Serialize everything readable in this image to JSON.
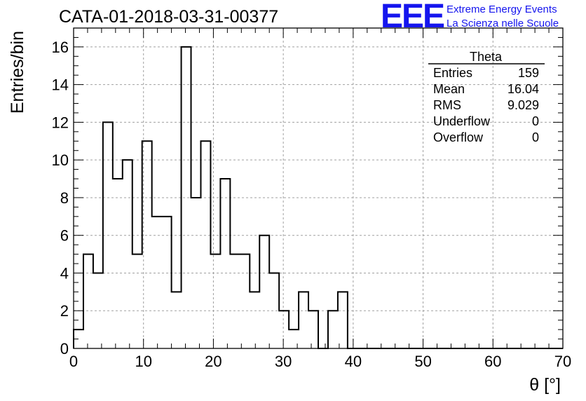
{
  "header": {
    "title": "CATA-01-2018-03-31-00377",
    "logo_mark": "EEE",
    "logo_line1": "Extreme Energy Events",
    "logo_line2": "La Scienza nelle Scuole",
    "logo_color": "#1515ee"
  },
  "stats_box": {
    "title": "Theta",
    "rows": [
      {
        "label": "Entries",
        "value": "159"
      },
      {
        "label": "Mean",
        "value": "16.04"
      },
      {
        "label": "RMS",
        "value": "9.029"
      },
      {
        "label": "Underflow",
        "value": "0"
      },
      {
        "label": "Overflow",
        "value": "0"
      }
    ]
  },
  "chart_data": {
    "type": "bar",
    "style": "step-histogram",
    "title": "CATA-01-2018-03-31-00377",
    "xlabel": "θ [°]",
    "ylabel": "Entries/bin",
    "xlim": [
      0,
      70
    ],
    "ylim": [
      0,
      17
    ],
    "grid": true,
    "bin_width": 1.4,
    "x_ticks": [
      0,
      10,
      20,
      30,
      40,
      50,
      60,
      70
    ],
    "y_ticks": [
      0,
      2,
      4,
      6,
      8,
      10,
      12,
      14,
      16
    ],
    "values": [
      1,
      5,
      4,
      12,
      9,
      10,
      5,
      11,
      7,
      7,
      3,
      16,
      8,
      11,
      5,
      9,
      5,
      5,
      3,
      6,
      4,
      2,
      1,
      3,
      2,
      0,
      2,
      3,
      0,
      0,
      0,
      0,
      0,
      0,
      0,
      0,
      0,
      0,
      0,
      0,
      0,
      0,
      0,
      0,
      0,
      0,
      0,
      0,
      0,
      0
    ]
  }
}
